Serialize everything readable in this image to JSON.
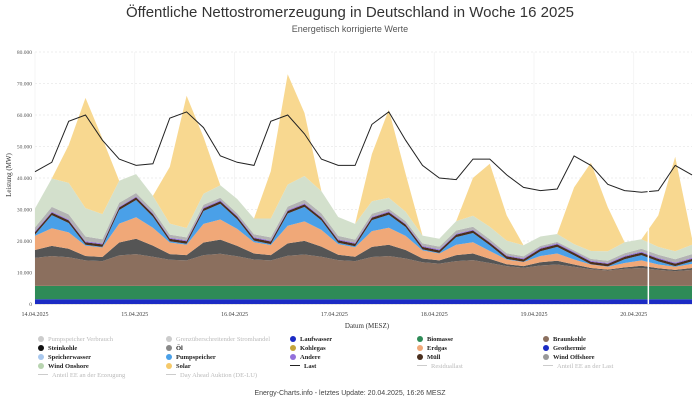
{
  "header": {
    "title": "Öffentliche Nettostromerzeugung in Deutschland in Woche 16 2025",
    "subtitle": "Energetisch korrigierte Werte"
  },
  "footer": {
    "text": "Energy-Charts.info - letztes Update: 20.04.2025, 16:26 MESZ"
  },
  "chart_data": {
    "type": "area",
    "xlabel": "Datum (MESZ)",
    "ylabel": "Leistung (MW)",
    "ylim": [
      0,
      80000
    ],
    "ytick_labels": [
      "0",
      "10.000",
      "20.000",
      "30.000",
      "40.000",
      "50.000",
      "60.000",
      "70.000",
      "80.000"
    ],
    "yticks": [
      0,
      10000,
      20000,
      30000,
      40000,
      50000,
      60000,
      70000,
      80000
    ],
    "xtick_labels": [
      "14.04.2025",
      "15.04.2025",
      "16.04.2025",
      "17.04.2025",
      "18.04.2025",
      "19.04.2025",
      "20.04.2025"
    ],
    "xticks": [
      0,
      24,
      48,
      72,
      96,
      120,
      144
    ],
    "xlim": [
      0,
      158
    ],
    "grid": true,
    "current_time_marker": 147.5,
    "series": [
      {
        "name": "Laufwasser",
        "color": "#1b2bc4",
        "stacked": true,
        "values": [
          1500,
          1500,
          1500,
          1500,
          1500,
          1500,
          1500,
          1500,
          1500,
          1500,
          1500,
          1500,
          1500,
          1500,
          1500,
          1500,
          1500,
          1500,
          1500,
          1500,
          1500,
          1500,
          1500,
          1500,
          1500,
          1500,
          1500,
          1500,
          1500,
          1500,
          1500,
          1500,
          1500,
          1500,
          1500,
          1500,
          1500,
          1500,
          1500,
          1500
        ]
      },
      {
        "name": "Biomasse",
        "color": "#2e8b57",
        "stacked": true,
        "values": [
          4300,
          4300,
          4300,
          4300,
          4300,
          4300,
          4300,
          4300,
          4300,
          4300,
          4300,
          4300,
          4300,
          4300,
          4300,
          4300,
          4300,
          4300,
          4300,
          4300,
          4300,
          4300,
          4300,
          4300,
          4300,
          4300,
          4300,
          4300,
          4300,
          4300,
          4300,
          4300,
          4300,
          4300,
          4300,
          4300,
          4300,
          4300,
          4300,
          4300
        ]
      },
      {
        "name": "Geothermie",
        "color": "#ff0000",
        "stacked": true,
        "values": [
          30,
          30,
          30,
          30,
          30,
          30,
          30,
          30,
          30,
          30,
          30,
          30,
          30,
          30,
          30,
          30,
          30,
          30,
          30,
          30,
          30,
          30,
          30,
          30,
          30,
          30,
          30,
          30,
          30,
          30,
          30,
          30,
          30,
          30,
          30,
          30,
          30,
          30,
          30,
          30
        ]
      },
      {
        "name": "Braunkohle",
        "color": "#8b6f5e",
        "stacked": true,
        "values": [
          8800,
          9400,
          9000,
          8000,
          7800,
          9600,
          10000,
          9200,
          8200,
          8000,
          9700,
          10100,
          9300,
          8300,
          8000,
          9500,
          9900,
          9200,
          8100,
          7800,
          9100,
          9400,
          8600,
          7400,
          7000,
          7800,
          8100,
          7200,
          6200,
          5700,
          6400,
          6700,
          6000,
          5200,
          4800,
          5300,
          5600,
          5000,
          4600,
          5000
        ]
      },
      {
        "name": "Steinkohle",
        "color": "#555555",
        "stacked": true,
        "values": [
          2500,
          3200,
          2700,
          1400,
          1300,
          4100,
          4900,
          3500,
          1800,
          1700,
          4000,
          4500,
          3300,
          1900,
          1700,
          3900,
          4300,
          3200,
          1700,
          1400,
          3200,
          3600,
          2700,
          1200,
          1000,
          1900,
          2100,
          1300,
          600,
          500,
          1000,
          1200,
          700,
          400,
          300,
          500,
          700,
          500,
          400,
          600
        ]
      },
      {
        "name": "Erdgas",
        "color": "#f0a878",
        "stacked": true,
        "values": [
          4500,
          5600,
          5200,
          3300,
          3000,
          6000,
          6800,
          5700,
          3700,
          3300,
          5900,
          6400,
          5400,
          3600,
          3200,
          5600,
          6200,
          5300,
          3400,
          3000,
          5000,
          5400,
          4500,
          2600,
          2200,
          3300,
          3600,
          2500,
          1500,
          1300,
          2000,
          2300,
          1600,
          1100,
          900,
          1400,
          1700,
          1200,
          1000,
          1300
        ]
      },
      {
        "name": "Pumpspeicher",
        "color": "#4aa0e8",
        "stacked": true,
        "values": [
          400,
          4200,
          3000,
          300,
          200,
          4300,
          5500,
          3500,
          400,
          300,
          4100,
          5000,
          3100,
          500,
          300,
          3900,
          4600,
          3000,
          400,
          300,
          3500,
          4100,
          2800,
          300,
          200,
          2400,
          2900,
          1800,
          200,
          100,
          1500,
          2100,
          1300,
          100,
          100,
          1200,
          1700,
          1000,
          200,
          800
        ]
      },
      {
        "name": "Müll",
        "color": "#4a2f1e",
        "stacked": true,
        "values": [
          800,
          800,
          800,
          800,
          800,
          800,
          800,
          800,
          800,
          800,
          800,
          800,
          800,
          800,
          800,
          800,
          800,
          800,
          800,
          800,
          800,
          800,
          800,
          800,
          800,
          800,
          800,
          800,
          800,
          800,
          800,
          800,
          800,
          800,
          800,
          800,
          800,
          800,
          800,
          800
        ]
      },
      {
        "name": "Andere",
        "color": "#9370db",
        "stacked": true,
        "values": [
          300,
          300,
          300,
          300,
          300,
          300,
          300,
          300,
          300,
          300,
          300,
          300,
          300,
          300,
          300,
          300,
          300,
          300,
          300,
          300,
          300,
          300,
          300,
          300,
          300,
          300,
          300,
          300,
          300,
          300,
          300,
          300,
          300,
          300,
          300,
          300,
          300,
          300,
          300,
          300
        ]
      },
      {
        "name": "Wind Offshore",
        "color": "#b3b3b3",
        "stacked": true,
        "values": [
          1200,
          1500,
          1600,
          1500,
          1300,
          1200,
          1100,
          1000,
          1000,
          900,
          900,
          800,
          800,
          900,
          1000,
          1100,
          1200,
          1200,
          1100,
          1000,
          900,
          800,
          800,
          800,
          900,
          1000,
          900,
          800,
          700,
          600,
          600,
          500,
          500,
          600,
          700,
          800,
          900,
          1000,
          1100,
          1200
        ]
      },
      {
        "name": "Wind Onshore",
        "color": "#d3e0cc",
        "stacked": true,
        "values": [
          6000,
          9000,
          10000,
          9000,
          8000,
          7000,
          6000,
          4500,
          3500,
          3000,
          3500,
          4000,
          4500,
          5000,
          6000,
          7000,
          7500,
          7000,
          6000,
          5000,
          4000,
          3500,
          3000,
          2500,
          2500,
          3000,
          3500,
          4000,
          4000,
          3500,
          3000,
          2500,
          2000,
          2500,
          3000,
          3500,
          3000,
          2500,
          2500,
          3000
        ]
      },
      {
        "name": "Solar",
        "color": "#f8d890",
        "stacked": true,
        "values": [
          0,
          0,
          12000,
          35000,
          24000,
          0,
          0,
          0,
          18000,
          42000,
          18000,
          0,
          0,
          0,
          15000,
          35000,
          20000,
          0,
          0,
          0,
          15000,
          28000,
          12000,
          0,
          0,
          0,
          12000,
          20000,
          8000,
          0,
          0,
          0,
          18000,
          28000,
          14000,
          0,
          0,
          10000,
          30000,
          2000
        ]
      },
      {
        "name": "Last",
        "color": "#222222",
        "stacked": false,
        "type": "line",
        "values": [
          42000,
          45000,
          58000,
          60000,
          52000,
          46000,
          44000,
          44500,
          59000,
          61000,
          56000,
          47000,
          45000,
          44000,
          58000,
          60000,
          54000,
          46000,
          44000,
          44000,
          57000,
          61000,
          52000,
          44000,
          40000,
          39500,
          46000,
          46000,
          41000,
          37000,
          36000,
          36500,
          47000,
          44000,
          38000,
          36000,
          35500,
          36000,
          44000,
          41000
        ]
      }
    ],
    "legend": {
      "placement": "bottom",
      "rows": [
        [
          {
            "label": "Pumpspeicher Verbrauch",
            "color": "#cccccc",
            "active": false,
            "shape": "dot"
          },
          {
            "label": "Grenzüberschreitender Stromhandel",
            "color": "#cccccc",
            "active": false,
            "shape": "dot"
          },
          {
            "label": "Laufwasser",
            "color": "#1b2bc4",
            "active": true,
            "shape": "dot"
          },
          {
            "label": "Biomasse",
            "color": "#2e8b57",
            "active": true,
            "shape": "dot"
          },
          {
            "label": "Braunkohle",
            "color": "#8b6f5e",
            "active": true,
            "shape": "dot"
          }
        ],
        [
          {
            "label": "Steinkohle",
            "color": "#111111",
            "active": true,
            "shape": "dot"
          },
          {
            "label": "Öl",
            "color": "#888888",
            "active": true,
            "shape": "dot"
          },
          {
            "label": "Kohlegas",
            "color": "#c4a43a",
            "active": true,
            "shape": "dot"
          },
          {
            "label": "Erdgas",
            "color": "#f0a878",
            "active": true,
            "shape": "dot"
          },
          {
            "label": "Geothermie",
            "color": "#1b2bc4",
            "active": true,
            "shape": "dot"
          }
        ],
        [
          {
            "label": "Speicherwasser",
            "color": "#a9c8ee",
            "active": true,
            "shape": "dot"
          },
          {
            "label": "Pumpspeicher",
            "color": "#4aa0e8",
            "active": true,
            "shape": "dot"
          },
          {
            "label": "Andere",
            "color": "#9370db",
            "active": true,
            "shape": "dot"
          },
          {
            "label": "Müll",
            "color": "#4a2f1e",
            "active": true,
            "shape": "dot"
          },
          {
            "label": "Wind Offshore",
            "color": "#999999",
            "active": true,
            "shape": "dot"
          }
        ],
        [
          {
            "label": "Wind Onshore",
            "color": "#b8d4b0",
            "active": true,
            "shape": "dot"
          },
          {
            "label": "Solar",
            "color": "#f5c96a",
            "active": true,
            "shape": "dot"
          },
          {
            "label": "Last",
            "color": "#222222",
            "active": true,
            "shape": "line"
          },
          {
            "label": "Residuallast",
            "color": "#cccccc",
            "active": false,
            "shape": "line"
          },
          {
            "label": "Anteil EE an der Last",
            "color": "#cccccc",
            "active": false,
            "shape": "line"
          }
        ],
        [
          {
            "label": "Anteil EE an der Erzeugung",
            "color": "#cccccc",
            "active": false,
            "shape": "line"
          },
          {
            "label": "Day Ahead Auktion (DE-LU)",
            "color": "#cccccc",
            "active": false,
            "shape": "line"
          }
        ]
      ]
    }
  }
}
